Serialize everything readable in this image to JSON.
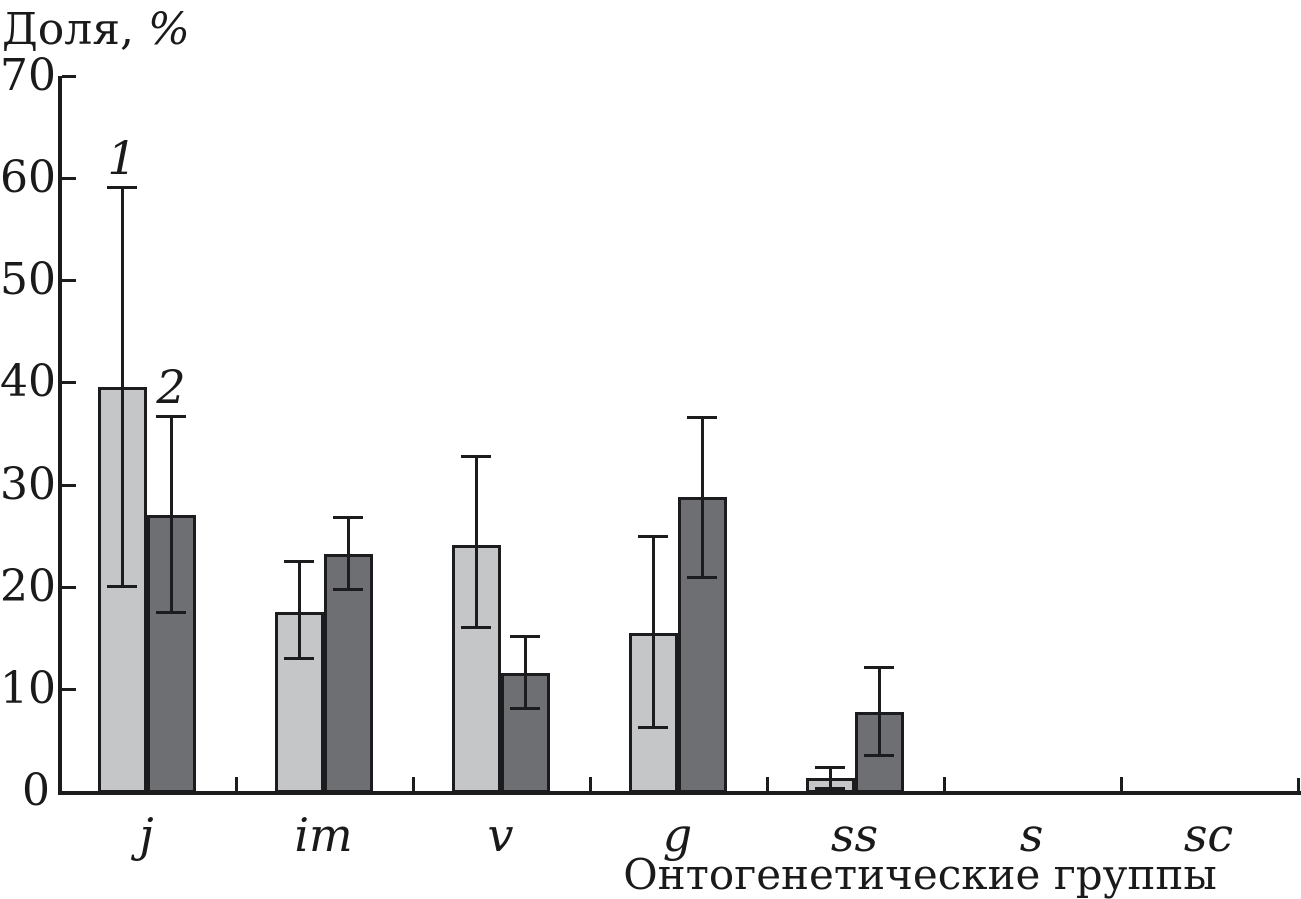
{
  "chart_data": {
    "type": "bar",
    "title": "",
    "ylabel": "Доля, %",
    "xlabel": "Онтогенетические группы",
    "ylim": [
      0,
      70
    ],
    "ytick_step": 10,
    "grid": false,
    "legend_position": "inline labels above first group error bars",
    "axis_color": "#1c1c1e",
    "categories": [
      "j",
      "im",
      "v",
      "g",
      "ss",
      "s",
      "sc"
    ],
    "series": [
      {
        "name": "1",
        "color": "#c5c6c8",
        "values": [
          39.6,
          17.5,
          24.1,
          15.5,
          1.3,
          0,
          0
        ],
        "err_low": [
          20.0,
          13.0,
          16.0,
          6.2,
          0.2,
          null,
          null
        ],
        "err_high": [
          59.1,
          22.5,
          32.7,
          24.9,
          2.3,
          null,
          null
        ]
      },
      {
        "name": "2",
        "color": "#6e6f73",
        "values": [
          27.0,
          23.2,
          11.6,
          28.8,
          7.7,
          0,
          0
        ],
        "err_low": [
          17.5,
          19.7,
          8.1,
          20.9,
          3.5,
          null,
          null
        ],
        "err_high": [
          36.7,
          26.8,
          15.1,
          36.6,
          12.1,
          null,
          null
        ]
      }
    ]
  }
}
